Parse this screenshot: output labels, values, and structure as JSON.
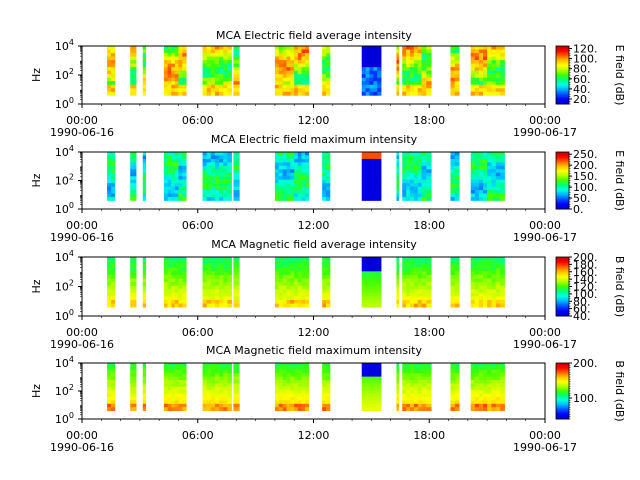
{
  "chart_data": [
    {
      "type": "heatmap",
      "title": "MCA  Electric field average intensity",
      "ylabel": "Hz",
      "yscale": "log",
      "ylim_exp": [
        0,
        4
      ],
      "ytick_labels": [
        {
          "base": "10",
          "exp": "0"
        },
        {
          "base": "10",
          "exp": "2"
        },
        {
          "base": "10",
          "exp": "4"
        }
      ],
      "x_range_hours": [
        0,
        24
      ],
      "xtick_labels": [
        "00:00",
        "06:00",
        "12:00",
        "18:00",
        "00:00"
      ],
      "date_labels": [
        "1990-06-16",
        "1990-06-17"
      ],
      "colorbar_label": "E field (dB)",
      "colorbar_range": [
        10,
        125
      ],
      "colorbar_ticks": [
        "20.",
        "40.",
        "60.",
        "80.",
        "100.",
        "120."
      ],
      "colorbar_tick_values": [
        20,
        40,
        60,
        80,
        100,
        120
      ],
      "profile": "e_avg"
    },
    {
      "type": "heatmap",
      "title": "MCA  Electric field maximum intensity",
      "ylabel": "Hz",
      "yscale": "log",
      "ylim_exp": [
        0,
        4
      ],
      "ytick_labels": [
        {
          "base": "10",
          "exp": "0"
        },
        {
          "base": "10",
          "exp": "2"
        },
        {
          "base": "10",
          "exp": "4"
        }
      ],
      "x_range_hours": [
        0,
        24
      ],
      "xtick_labels": [
        "00:00",
        "06:00",
        "12:00",
        "18:00",
        "00:00"
      ],
      "date_labels": [
        "1990-06-16",
        "1990-06-17"
      ],
      "colorbar_label": "E field (dB)",
      "colorbar_range": [
        0,
        260
      ],
      "colorbar_ticks": [
        "0.",
        "50.",
        "100.",
        "150.",
        "200.",
        "250."
      ],
      "colorbar_tick_values": [
        0,
        50,
        100,
        150,
        200,
        250
      ],
      "profile": "e_max"
    },
    {
      "type": "heatmap",
      "title": "MCA  Magnetic field average intensity",
      "ylabel": "Hz",
      "yscale": "log",
      "ylim_exp": [
        0,
        4
      ],
      "ytick_labels": [
        {
          "base": "10",
          "exp": "0"
        },
        {
          "base": "10",
          "exp": "2"
        },
        {
          "base": "10",
          "exp": "4"
        }
      ],
      "x_range_hours": [
        0,
        24
      ],
      "xtick_labels": [
        "00:00",
        "06:00",
        "12:00",
        "18:00",
        "00:00"
      ],
      "date_labels": [
        "1990-06-16",
        "1990-06-17"
      ],
      "colorbar_label": "B field (dB)",
      "colorbar_range": [
        40,
        200
      ],
      "colorbar_ticks": [
        "40.",
        "60.",
        "80.",
        "100.",
        "120.",
        "140.",
        "160.",
        "180.",
        "200."
      ],
      "colorbar_tick_values": [
        40,
        60,
        80,
        100,
        120,
        140,
        160,
        180,
        200
      ],
      "profile": "b_avg"
    },
    {
      "type": "heatmap",
      "title": "MCA  Magnetic field maximum intensity",
      "ylabel": "Hz",
      "yscale": "log",
      "ylim_exp": [
        0,
        4
      ],
      "ytick_labels": [
        {
          "base": "10",
          "exp": "0"
        },
        {
          "base": "10",
          "exp": "2"
        },
        {
          "base": "10",
          "exp": "4"
        }
      ],
      "x_range_hours": [
        0,
        24
      ],
      "xtick_labels": [
        "00:00",
        "06:00",
        "12:00",
        "18:00",
        "00:00"
      ],
      "date_labels": [
        "1990-06-16",
        "1990-06-17"
      ],
      "colorbar_label": "B field (dB)",
      "colorbar_range": [
        40,
        200
      ],
      "colorbar_ticks": [
        "100.",
        "200."
      ],
      "colorbar_tick_values": [
        100,
        200
      ],
      "profile": "b_max"
    }
  ],
  "data_segments_hours": [
    [
      1.3,
      1.7
    ],
    [
      2.5,
      2.8
    ],
    [
      3.15,
      3.3
    ],
    [
      4.25,
      5.0
    ],
    [
      5.0,
      5.4
    ],
    [
      6.25,
      7.75
    ],
    [
      7.85,
      8.15
    ],
    [
      10.0,
      11.0
    ],
    [
      11.0,
      11.75
    ],
    [
      12.45,
      12.85
    ],
    [
      14.5,
      15.5
    ],
    [
      16.3,
      16.42
    ],
    [
      16.6,
      17.6
    ],
    [
      17.6,
      18.1
    ],
    [
      19.1,
      19.55
    ],
    [
      20.15,
      21.0
    ],
    [
      21.0,
      21.9
    ]
  ],
  "colors": {
    "colormap": [
      "#0000d0",
      "#0000ff",
      "#0050ff",
      "#00b0ff",
      "#00ffe0",
      "#00ff80",
      "#40ff00",
      "#b0ff00",
      "#ffff00",
      "#ffc000",
      "#ff6000",
      "#ff0000",
      "#c00000"
    ]
  }
}
